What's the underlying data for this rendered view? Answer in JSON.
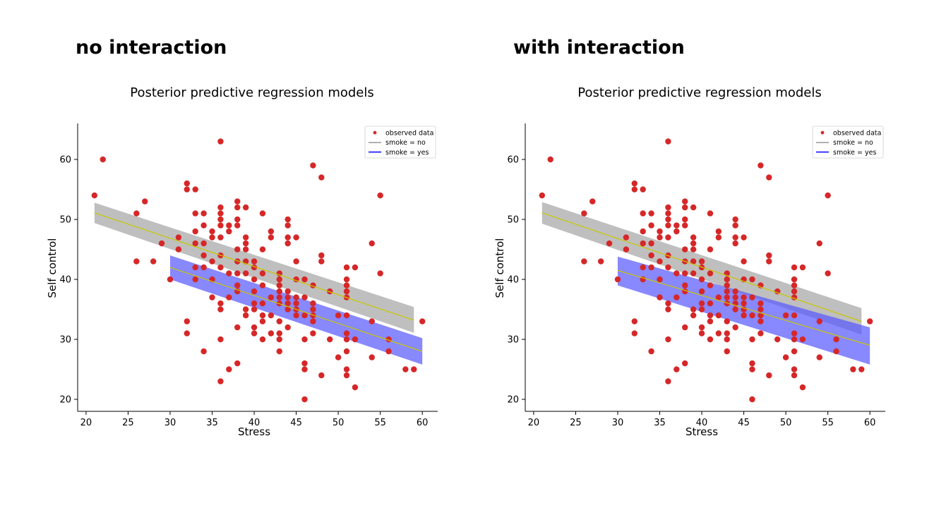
{
  "panels": [
    {
      "heading": "no interaction"
    },
    {
      "heading": "with interaction"
    }
  ],
  "colors": {
    "points": "#d62728",
    "band_no": "#a9a9a9",
    "band_yes": "#5555ff",
    "mean_line": "#c8c800",
    "legend_no": "#808080",
    "legend_yes": "#0000ff"
  },
  "chart_data": [
    {
      "type": "scatter",
      "title": "Posterior predictive regression models",
      "xlabel": "Stress",
      "ylabel": "Self control",
      "xlim": [
        19,
        62
      ],
      "ylim": [
        18,
        66
      ],
      "xticks": [
        "20",
        "25",
        "30",
        "35",
        "40",
        "45",
        "50",
        "55",
        "60"
      ],
      "yticks": [
        "20",
        "30",
        "40",
        "50",
        "60"
      ],
      "legend_position": "top-right",
      "legend": [
        "observed data",
        "smoke = no",
        "smoke = yes"
      ],
      "observed": [
        [
          21,
          54
        ],
        [
          22,
          60
        ],
        [
          26,
          51
        ],
        [
          26,
          43
        ],
        [
          27,
          53
        ],
        [
          28,
          43
        ],
        [
          29,
          46
        ],
        [
          30,
          40
        ],
        [
          31,
          47
        ],
        [
          31,
          45
        ],
        [
          32,
          56
        ],
        [
          32,
          55
        ],
        [
          32,
          33
        ],
        [
          32,
          31
        ],
        [
          33,
          55
        ],
        [
          33,
          51
        ],
        [
          33,
          48
        ],
        [
          33,
          46
        ],
        [
          33,
          42
        ],
        [
          33,
          40
        ],
        [
          34,
          51
        ],
        [
          34,
          49
        ],
        [
          34,
          46
        ],
        [
          34,
          44
        ],
        [
          34,
          42
        ],
        [
          34,
          28
        ],
        [
          35,
          48
        ],
        [
          35,
          47
        ],
        [
          35,
          43
        ],
        [
          35,
          40
        ],
        [
          35,
          37
        ],
        [
          36,
          63
        ],
        [
          36,
          52
        ],
        [
          36,
          51
        ],
        [
          36,
          50
        ],
        [
          36,
          49
        ],
        [
          36,
          47
        ],
        [
          36,
          44
        ],
        [
          36,
          42
        ],
        [
          36,
          36
        ],
        [
          36,
          35
        ],
        [
          36,
          30
        ],
        [
          36,
          23
        ],
        [
          37,
          49
        ],
        [
          37,
          48
        ],
        [
          37,
          41
        ],
        [
          37,
          37
        ],
        [
          37,
          25
        ],
        [
          38,
          53
        ],
        [
          38,
          52
        ],
        [
          38,
          50
        ],
        [
          38,
          49
        ],
        [
          38,
          45
        ],
        [
          38,
          43
        ],
        [
          38,
          41
        ],
        [
          38,
          39
        ],
        [
          38,
          38
        ],
        [
          38,
          32
        ],
        [
          38,
          26
        ],
        [
          39,
          52
        ],
        [
          39,
          47
        ],
        [
          39,
          46
        ],
        [
          39,
          45
        ],
        [
          39,
          43
        ],
        [
          39,
          41
        ],
        [
          39,
          35
        ],
        [
          39,
          34
        ],
        [
          40,
          43
        ],
        [
          40,
          42
        ],
        [
          40,
          40
        ],
        [
          40,
          38
        ],
        [
          40,
          36
        ],
        [
          40,
          35
        ],
        [
          40,
          32
        ],
        [
          40,
          31
        ],
        [
          41,
          51
        ],
        [
          41,
          45
        ],
        [
          41,
          41
        ],
        [
          41,
          39
        ],
        [
          41,
          36
        ],
        [
          41,
          34
        ],
        [
          41,
          33
        ],
        [
          41,
          30
        ],
        [
          42,
          48
        ],
        [
          42,
          47
        ],
        [
          42,
          37
        ],
        [
          42,
          34
        ],
        [
          42,
          31
        ],
        [
          43,
          41
        ],
        [
          43,
          40
        ],
        [
          43,
          39
        ],
        [
          43,
          38
        ],
        [
          43,
          37
        ],
        [
          43,
          36
        ],
        [
          43,
          33
        ],
        [
          43,
          31
        ],
        [
          43,
          30
        ],
        [
          43,
          28
        ],
        [
          44,
          50
        ],
        [
          44,
          49
        ],
        [
          44,
          47
        ],
        [
          44,
          46
        ],
        [
          44,
          38
        ],
        [
          44,
          37
        ],
        [
          44,
          36
        ],
        [
          44,
          35
        ],
        [
          44,
          32
        ],
        [
          45,
          47
        ],
        [
          45,
          43
        ],
        [
          45,
          40
        ],
        [
          45,
          37
        ],
        [
          45,
          36
        ],
        [
          45,
          35
        ],
        [
          45,
          34
        ],
        [
          46,
          40
        ],
        [
          46,
          37
        ],
        [
          46,
          34
        ],
        [
          46,
          30
        ],
        [
          46,
          26
        ],
        [
          46,
          25
        ],
        [
          46,
          20
        ],
        [
          47,
          59
        ],
        [
          47,
          39
        ],
        [
          47,
          36
        ],
        [
          47,
          35
        ],
        [
          47,
          34
        ],
        [
          47,
          33
        ],
        [
          47,
          31
        ],
        [
          48,
          57
        ],
        [
          48,
          44
        ],
        [
          48,
          43
        ],
        [
          48,
          24
        ],
        [
          49,
          38
        ],
        [
          49,
          30
        ],
        [
          50,
          34
        ],
        [
          50,
          27
        ],
        [
          51,
          42
        ],
        [
          51,
          40
        ],
        [
          51,
          39
        ],
        [
          51,
          38
        ],
        [
          51,
          37
        ],
        [
          51,
          34
        ],
        [
          51,
          31
        ],
        [
          51,
          30
        ],
        [
          51,
          28
        ],
        [
          51,
          25
        ],
        [
          51,
          24
        ],
        [
          52,
          42
        ],
        [
          52,
          30
        ],
        [
          52,
          22
        ],
        [
          54,
          46
        ],
        [
          54,
          33
        ],
        [
          54,
          27
        ],
        [
          55,
          54
        ],
        [
          55,
          41
        ],
        [
          56,
          30
        ],
        [
          56,
          28
        ],
        [
          58,
          25
        ],
        [
          59,
          25
        ],
        [
          60,
          33
        ]
      ],
      "series": [
        {
          "name": "smoke = no",
          "x": [
            21,
            59
          ],
          "mean": [
            51.1,
            33.2
          ],
          "lower": [
            49.4,
            31.1
          ],
          "upper": [
            52.8,
            35.4
          ]
        },
        {
          "name": "smoke = yes",
          "x": [
            30,
            60
          ],
          "mean": [
            42.0,
            28.0
          ],
          "lower": [
            40.0,
            25.8
          ],
          "upper": [
            44.0,
            30.2
          ]
        }
      ]
    },
    {
      "type": "scatter",
      "title": "Posterior predictive regression models",
      "xlabel": "Stress",
      "ylabel": "Self control",
      "xlim": [
        19,
        62
      ],
      "ylim": [
        18,
        66
      ],
      "xticks": [
        "20",
        "25",
        "30",
        "35",
        "40",
        "45",
        "50",
        "55",
        "60"
      ],
      "yticks": [
        "20",
        "30",
        "40",
        "50",
        "60"
      ],
      "legend_position": "top-right",
      "legend": [
        "observed data",
        "smoke = no",
        "smoke = yes"
      ],
      "observed": [
        [
          21,
          54
        ],
        [
          22,
          60
        ],
        [
          26,
          51
        ],
        [
          26,
          43
        ],
        [
          27,
          53
        ],
        [
          28,
          43
        ],
        [
          29,
          46
        ],
        [
          30,
          40
        ],
        [
          31,
          47
        ],
        [
          31,
          45
        ],
        [
          32,
          56
        ],
        [
          32,
          55
        ],
        [
          32,
          33
        ],
        [
          32,
          31
        ],
        [
          33,
          55
        ],
        [
          33,
          51
        ],
        [
          33,
          48
        ],
        [
          33,
          46
        ],
        [
          33,
          42
        ],
        [
          33,
          40
        ],
        [
          34,
          51
        ],
        [
          34,
          49
        ],
        [
          34,
          46
        ],
        [
          34,
          44
        ],
        [
          34,
          42
        ],
        [
          34,
          28
        ],
        [
          35,
          48
        ],
        [
          35,
          47
        ],
        [
          35,
          43
        ],
        [
          35,
          40
        ],
        [
          35,
          37
        ],
        [
          36,
          63
        ],
        [
          36,
          52
        ],
        [
          36,
          51
        ],
        [
          36,
          50
        ],
        [
          36,
          49
        ],
        [
          36,
          47
        ],
        [
          36,
          44
        ],
        [
          36,
          42
        ],
        [
          36,
          36
        ],
        [
          36,
          35
        ],
        [
          36,
          30
        ],
        [
          36,
          23
        ],
        [
          37,
          49
        ],
        [
          37,
          48
        ],
        [
          37,
          41
        ],
        [
          37,
          37
        ],
        [
          37,
          25
        ],
        [
          38,
          53
        ],
        [
          38,
          52
        ],
        [
          38,
          50
        ],
        [
          38,
          49
        ],
        [
          38,
          45
        ],
        [
          38,
          43
        ],
        [
          38,
          41
        ],
        [
          38,
          39
        ],
        [
          38,
          38
        ],
        [
          38,
          32
        ],
        [
          38,
          26
        ],
        [
          39,
          52
        ],
        [
          39,
          47
        ],
        [
          39,
          46
        ],
        [
          39,
          45
        ],
        [
          39,
          43
        ],
        [
          39,
          41
        ],
        [
          39,
          35
        ],
        [
          39,
          34
        ],
        [
          40,
          43
        ],
        [
          40,
          42
        ],
        [
          40,
          40
        ],
        [
          40,
          38
        ],
        [
          40,
          36
        ],
        [
          40,
          35
        ],
        [
          40,
          32
        ],
        [
          40,
          31
        ],
        [
          41,
          51
        ],
        [
          41,
          45
        ],
        [
          41,
          41
        ],
        [
          41,
          39
        ],
        [
          41,
          36
        ],
        [
          41,
          34
        ],
        [
          41,
          33
        ],
        [
          41,
          30
        ],
        [
          42,
          48
        ],
        [
          42,
          47
        ],
        [
          42,
          37
        ],
        [
          42,
          34
        ],
        [
          42,
          31
        ],
        [
          43,
          41
        ],
        [
          43,
          40
        ],
        [
          43,
          39
        ],
        [
          43,
          38
        ],
        [
          43,
          37
        ],
        [
          43,
          36
        ],
        [
          43,
          33
        ],
        [
          43,
          31
        ],
        [
          43,
          30
        ],
        [
          43,
          28
        ],
        [
          44,
          50
        ],
        [
          44,
          49
        ],
        [
          44,
          47
        ],
        [
          44,
          46
        ],
        [
          44,
          38
        ],
        [
          44,
          37
        ],
        [
          44,
          36
        ],
        [
          44,
          35
        ],
        [
          44,
          32
        ],
        [
          45,
          47
        ],
        [
          45,
          43
        ],
        [
          45,
          40
        ],
        [
          45,
          37
        ],
        [
          45,
          36
        ],
        [
          45,
          35
        ],
        [
          45,
          34
        ],
        [
          46,
          40
        ],
        [
          46,
          37
        ],
        [
          46,
          34
        ],
        [
          46,
          30
        ],
        [
          46,
          26
        ],
        [
          46,
          25
        ],
        [
          46,
          20
        ],
        [
          47,
          59
        ],
        [
          47,
          39
        ],
        [
          47,
          36
        ],
        [
          47,
          35
        ],
        [
          47,
          34
        ],
        [
          47,
          33
        ],
        [
          47,
          31
        ],
        [
          48,
          57
        ],
        [
          48,
          44
        ],
        [
          48,
          43
        ],
        [
          48,
          24
        ],
        [
          49,
          38
        ],
        [
          49,
          30
        ],
        [
          50,
          34
        ],
        [
          50,
          27
        ],
        [
          51,
          42
        ],
        [
          51,
          40
        ],
        [
          51,
          39
        ],
        [
          51,
          38
        ],
        [
          51,
          37
        ],
        [
          51,
          34
        ],
        [
          51,
          31
        ],
        [
          51,
          30
        ],
        [
          51,
          28
        ],
        [
          51,
          25
        ],
        [
          51,
          24
        ],
        [
          52,
          42
        ],
        [
          52,
          30
        ],
        [
          52,
          22
        ],
        [
          54,
          46
        ],
        [
          54,
          33
        ],
        [
          54,
          27
        ],
        [
          55,
          54
        ],
        [
          55,
          41
        ],
        [
          56,
          30
        ],
        [
          56,
          28
        ],
        [
          58,
          25
        ],
        [
          59,
          25
        ],
        [
          60,
          33
        ]
      ],
      "series": [
        {
          "name": "smoke = no",
          "x": [
            21,
            59
          ],
          "mean": [
            51.1,
            33.0
          ],
          "lower": [
            49.3,
            30.8
          ],
          "upper": [
            52.9,
            35.2
          ]
        },
        {
          "name": "smoke = yes",
          "x": [
            30,
            60
          ],
          "mean": [
            41.5,
            29.0
          ],
          "lower": [
            39.0,
            25.8
          ],
          "upper": [
            43.8,
            32.0
          ]
        }
      ]
    }
  ]
}
